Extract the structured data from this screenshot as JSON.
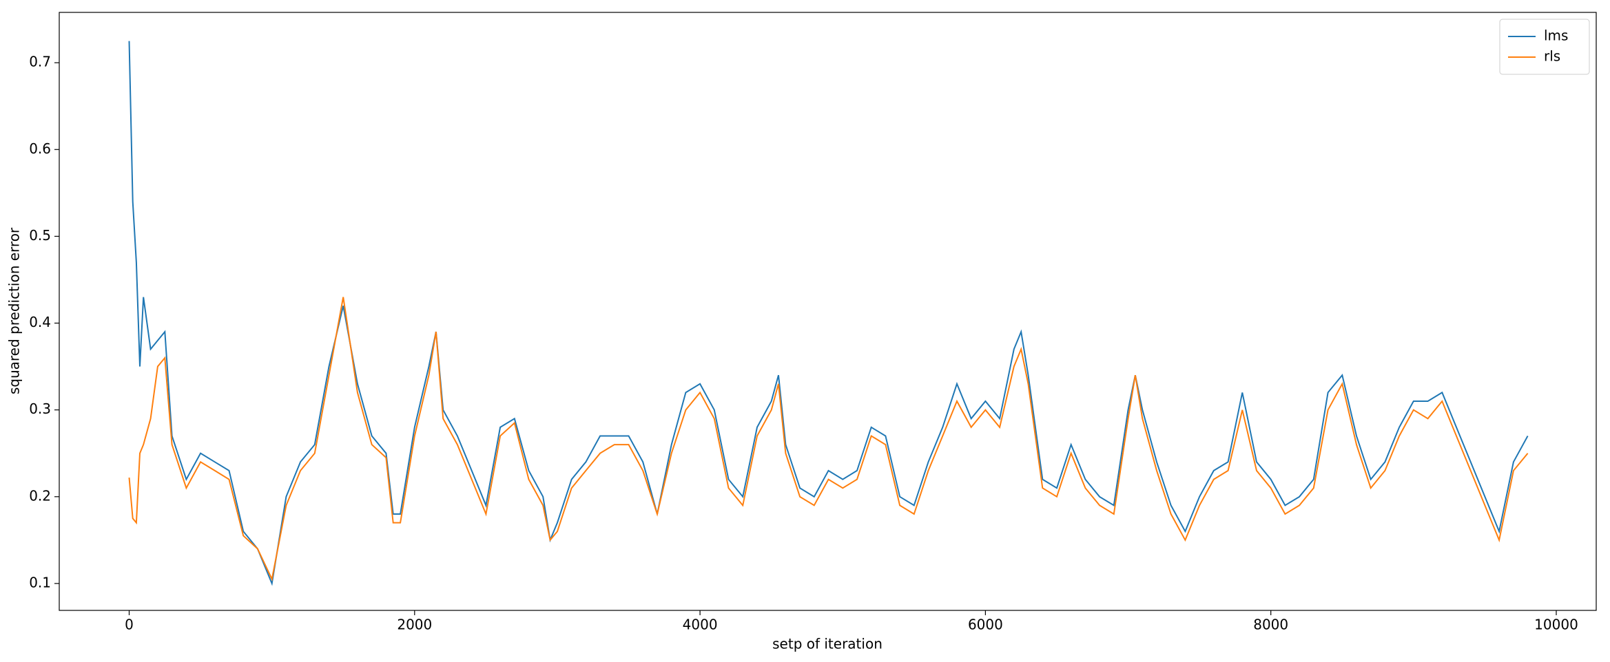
{
  "chart_data": {
    "type": "line",
    "xlabel": "setp of iteration",
    "ylabel": "squared prediction error",
    "x": [
      0,
      25,
      50,
      75,
      100,
      150,
      200,
      250,
      300,
      400,
      500,
      600,
      700,
      800,
      900,
      1000,
      1100,
      1200,
      1300,
      1400,
      1500,
      1600,
      1700,
      1800,
      1850,
      1900,
      2000,
      2100,
      2150,
      2200,
      2300,
      2400,
      2500,
      2600,
      2700,
      2800,
      2900,
      2950,
      3000,
      3100,
      3200,
      3300,
      3400,
      3500,
      3600,
      3700,
      3800,
      3900,
      4000,
      4100,
      4200,
      4300,
      4400,
      4500,
      4550,
      4600,
      4700,
      4800,
      4900,
      5000,
      5100,
      5200,
      5300,
      5400,
      5500,
      5600,
      5700,
      5800,
      5900,
      6000,
      6100,
      6200,
      6250,
      6300,
      6400,
      6500,
      6600,
      6700,
      6800,
      6900,
      7000,
      7050,
      7100,
      7200,
      7300,
      7400,
      7500,
      7600,
      7700,
      7800,
      7900,
      8000,
      8100,
      8200,
      8300,
      8400,
      8500,
      8600,
      8700,
      8800,
      8900,
      9000,
      9100,
      9200,
      9300,
      9400,
      9500,
      9600,
      9700,
      9800
    ],
    "series": [
      {
        "name": "lms",
        "color": "#1f77b4",
        "values": [
          0.725,
          0.54,
          0.47,
          0.35,
          0.43,
          0.37,
          0.38,
          0.39,
          0.27,
          0.22,
          0.25,
          0.24,
          0.23,
          0.16,
          0.14,
          0.1,
          0.2,
          0.24,
          0.26,
          0.35,
          0.42,
          0.33,
          0.27,
          0.25,
          0.18,
          0.18,
          0.28,
          0.35,
          0.39,
          0.3,
          0.27,
          0.23,
          0.19,
          0.28,
          0.29,
          0.23,
          0.2,
          0.15,
          0.17,
          0.22,
          0.24,
          0.27,
          0.27,
          0.27,
          0.24,
          0.18,
          0.26,
          0.32,
          0.33,
          0.3,
          0.22,
          0.2,
          0.28,
          0.31,
          0.34,
          0.26,
          0.21,
          0.2,
          0.23,
          0.22,
          0.23,
          0.28,
          0.27,
          0.2,
          0.19,
          0.24,
          0.28,
          0.33,
          0.29,
          0.31,
          0.29,
          0.37,
          0.39,
          0.34,
          0.22,
          0.21,
          0.26,
          0.22,
          0.2,
          0.19,
          0.3,
          0.34,
          0.3,
          0.24,
          0.19,
          0.16,
          0.2,
          0.23,
          0.24,
          0.32,
          0.24,
          0.22,
          0.19,
          0.2,
          0.22,
          0.32,
          0.34,
          0.27,
          0.22,
          0.24,
          0.28,
          0.31,
          0.31,
          0.32,
          0.28,
          0.24,
          0.2,
          0.16,
          0.24,
          0.27
        ]
      },
      {
        "name": "rls",
        "color": "#ff7f0e",
        "values": [
          0.222,
          0.175,
          0.17,
          0.25,
          0.26,
          0.29,
          0.35,
          0.36,
          0.26,
          0.21,
          0.24,
          0.23,
          0.22,
          0.155,
          0.14,
          0.105,
          0.19,
          0.23,
          0.25,
          0.34,
          0.43,
          0.32,
          0.26,
          0.245,
          0.17,
          0.17,
          0.27,
          0.34,
          0.39,
          0.29,
          0.26,
          0.22,
          0.18,
          0.27,
          0.285,
          0.22,
          0.19,
          0.15,
          0.16,
          0.21,
          0.23,
          0.25,
          0.26,
          0.26,
          0.23,
          0.18,
          0.25,
          0.3,
          0.32,
          0.29,
          0.21,
          0.19,
          0.27,
          0.3,
          0.33,
          0.25,
          0.2,
          0.19,
          0.22,
          0.21,
          0.22,
          0.27,
          0.26,
          0.19,
          0.18,
          0.23,
          0.27,
          0.31,
          0.28,
          0.3,
          0.28,
          0.35,
          0.37,
          0.33,
          0.21,
          0.2,
          0.25,
          0.21,
          0.19,
          0.18,
          0.29,
          0.34,
          0.29,
          0.23,
          0.18,
          0.15,
          0.19,
          0.22,
          0.23,
          0.3,
          0.23,
          0.21,
          0.18,
          0.19,
          0.21,
          0.3,
          0.33,
          0.26,
          0.21,
          0.23,
          0.27,
          0.3,
          0.29,
          0.31,
          0.27,
          0.23,
          0.19,
          0.15,
          0.23,
          0.25
        ]
      }
    ],
    "xlim": [
      -490,
      10280
    ],
    "xticks": [
      0,
      2000,
      4000,
      6000,
      8000,
      10000
    ],
    "ylim": [
      0.069,
      0.758
    ],
    "yticks": [
      0.1,
      0.2,
      0.3,
      0.4,
      0.5,
      0.6,
      0.7
    ],
    "legend": "upper right"
  }
}
